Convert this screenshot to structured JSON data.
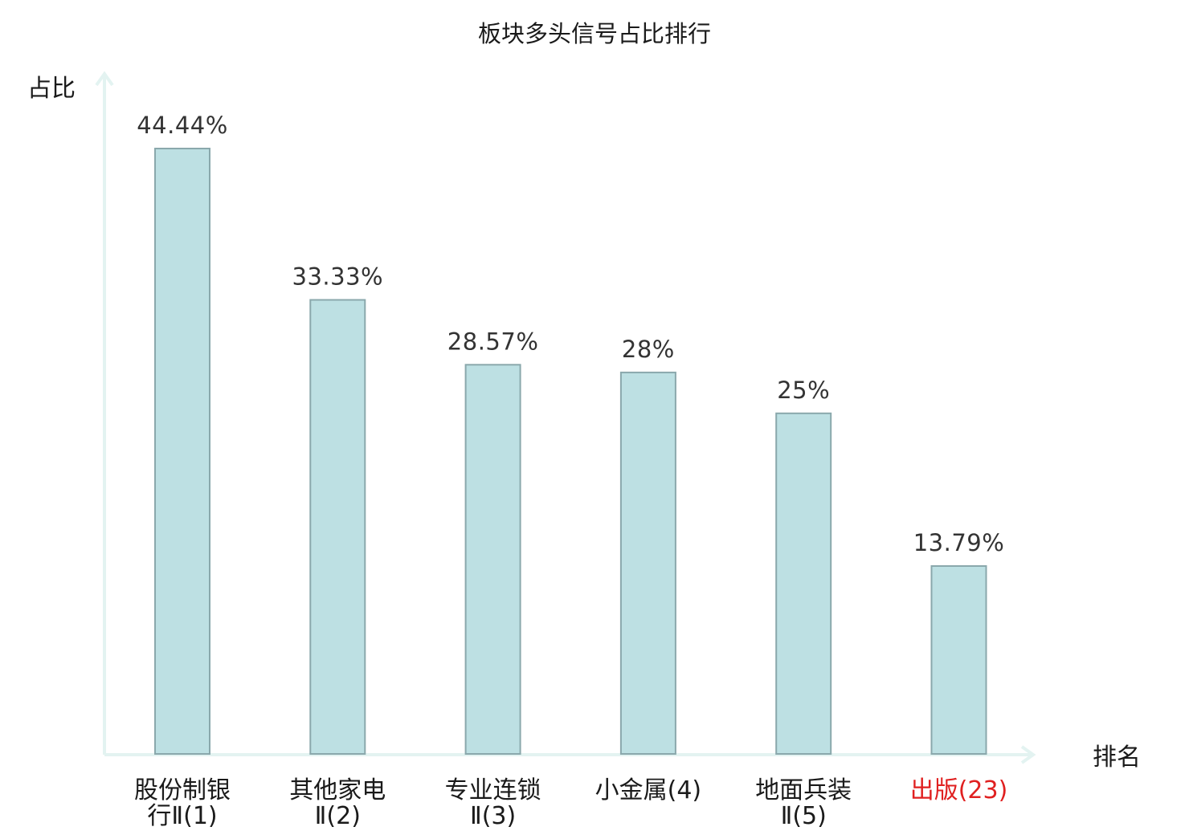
{
  "chart_data": {
    "type": "bar",
    "title": "板块多头信号占比排行",
    "ylabel": "占比",
    "xlabel": "排名",
    "ylim": [
      0,
      50
    ],
    "grid": false,
    "categories": [
      {
        "name": "股份制银行",
        "rank": "Ⅱ(1)",
        "lines": [
          "股份制银",
          "行Ⅱ(1)"
        ]
      },
      {
        "name": "其他家电",
        "rank": "Ⅱ(2)",
        "lines": [
          "其他家电",
          "Ⅱ(2)"
        ]
      },
      {
        "name": "专业连锁",
        "rank": "Ⅱ(3)",
        "lines": [
          "专业连锁",
          "Ⅱ(3)"
        ]
      },
      {
        "name": "小金属",
        "rank": "(4)",
        "lines": [
          "小金属(4)"
        ]
      },
      {
        "name": "地面兵装",
        "rank": "Ⅱ(5)",
        "lines": [
          "地面兵装",
          "Ⅱ(5)"
        ]
      },
      {
        "name": "出版",
        "rank": "(23)",
        "lines": [
          "出版(23)"
        ]
      }
    ],
    "values": [
      44.44,
      33.33,
      28.57,
      28,
      25,
      13.79
    ],
    "value_labels": [
      "44.44%",
      "33.33%",
      "28.57%",
      "28%",
      "25%",
      "13.79%"
    ],
    "highlight_index": 5
  },
  "colors": {
    "bar_fill": "#bde0e3",
    "bar_stroke": "#8aa8ac",
    "axis": "#e3f3f1",
    "highlight_text": "#e02020",
    "label_text": "#333333"
  }
}
